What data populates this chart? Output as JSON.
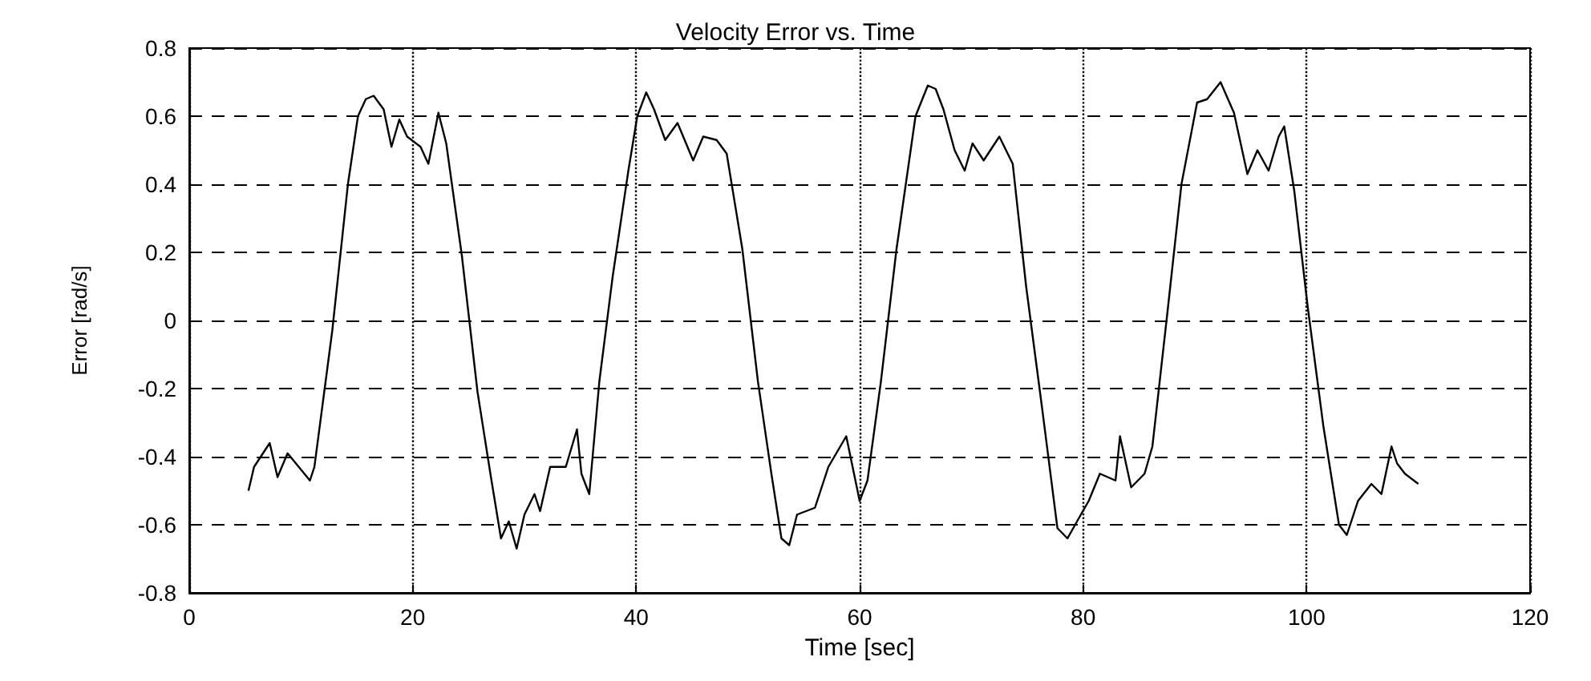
{
  "chart_data": {
    "type": "line",
    "title": "Velocity Error vs. Time",
    "xlabel": "Time [sec]",
    "ylabel": "Error [rad/s]",
    "xlim": [
      0,
      120
    ],
    "xticks": [
      0,
      20,
      40,
      60,
      80,
      100,
      120
    ],
    "ylim": [
      -0.8,
      0.8
    ],
    "yticks": [
      -0.8,
      -0.6,
      -0.4,
      -0.2,
      0,
      0.2,
      0.4,
      0.6,
      0.8
    ],
    "grid": true,
    "line_style": "solid",
    "marker": "none",
    "series": [
      {
        "color": "#000000",
        "x": [
          5.3,
          5.8,
          7.2,
          7.9,
          8.8,
          9.8,
          10.8,
          11.2,
          12.8,
          14.2,
          15.1,
          15.8,
          16.5,
          17.4,
          18.1,
          18.8,
          19.5,
          20.7,
          21.4,
          22.3,
          23.0,
          24.4,
          25.8,
          27.0,
          27.9,
          28.6,
          29.3,
          30.0,
          30.9,
          31.4,
          32.3,
          33.7,
          34.7,
          35.1,
          35.8,
          36.7,
          37.9,
          39.3,
          40.1,
          40.9,
          41.6,
          42.6,
          43.7,
          45.1,
          46.0,
          47.2,
          48.1,
          49.5,
          50.9,
          52.1,
          53.0,
          53.7,
          54.4,
          56.0,
          57.2,
          58.8,
          60.0,
          60.7,
          61.9,
          63.3,
          65.0,
          66.1,
          66.8,
          67.5,
          68.5,
          69.4,
          70.1,
          71.1,
          72.5,
          73.7,
          74.9,
          76.3,
          77.7,
          78.6,
          79.8,
          80.5,
          81.5,
          82.9,
          83.3,
          84.3,
          85.5,
          86.2,
          87.6,
          88.8,
          90.2,
          91.1,
          92.3,
          93.5,
          94.7,
          95.6,
          96.6,
          97.5,
          98.0,
          98.9,
          100.1,
          101.5,
          102.9,
          103.6,
          104.6,
          105.8,
          106.7,
          107.6,
          108.1,
          108.8,
          110.0
        ],
        "values": [
          -0.5,
          -0.43,
          -0.36,
          -0.46,
          -0.39,
          -0.43,
          -0.47,
          -0.43,
          -0.03,
          0.4,
          0.6,
          0.65,
          0.66,
          0.62,
          0.51,
          0.59,
          0.54,
          0.51,
          0.46,
          0.61,
          0.52,
          0.19,
          -0.21,
          -0.46,
          -0.64,
          -0.59,
          -0.67,
          -0.57,
          -0.51,
          -0.56,
          -0.43,
          -0.43,
          -0.32,
          -0.45,
          -0.51,
          -0.18,
          0.13,
          0.44,
          0.6,
          0.67,
          0.62,
          0.53,
          0.58,
          0.47,
          0.54,
          0.53,
          0.49,
          0.21,
          -0.18,
          -0.45,
          -0.64,
          -0.66,
          -0.57,
          -0.55,
          -0.43,
          -0.34,
          -0.53,
          -0.47,
          -0.18,
          0.21,
          0.6,
          0.69,
          0.68,
          0.62,
          0.5,
          0.44,
          0.52,
          0.47,
          0.54,
          0.46,
          0.1,
          -0.25,
          -0.61,
          -0.64,
          -0.57,
          -0.53,
          -0.45,
          -0.47,
          -0.34,
          -0.49,
          -0.45,
          -0.37,
          0.04,
          0.4,
          0.64,
          0.65,
          0.7,
          0.61,
          0.43,
          0.5,
          0.44,
          0.54,
          0.57,
          0.38,
          0.04,
          -0.31,
          -0.6,
          -0.63,
          -0.53,
          -0.48,
          -0.51,
          -0.37,
          -0.42,
          -0.45,
          -0.48
        ]
      }
    ]
  }
}
